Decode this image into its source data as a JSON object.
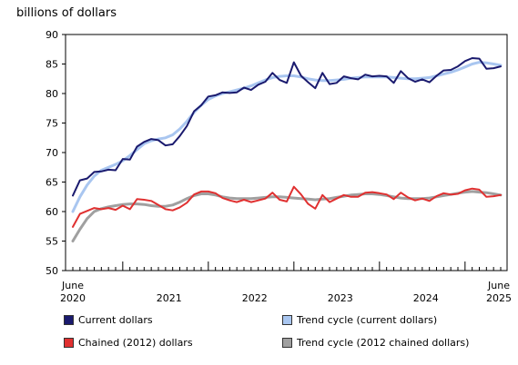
{
  "chart_data": {
    "type": "line",
    "ylabel": "billions of dollars",
    "ylim": [
      50,
      90
    ],
    "yticks": [
      50,
      55,
      60,
      65,
      70,
      75,
      80,
      85,
      90
    ],
    "x_start": "June 2020",
    "x_end": "June 2025",
    "xtick_labels": [
      {
        "label": "June",
        "sub": "2020"
      },
      {
        "label": "2021"
      },
      {
        "label": "2022"
      },
      {
        "label": "2023"
      },
      {
        "label": "2024"
      },
      {
        "label": "June",
        "sub": "2025"
      }
    ],
    "grid": false,
    "legend_position": "bottom",
    "series": [
      {
        "name": "Current dollars",
        "color": "#1a1a6e",
        "style": "solid",
        "values": [
          62.7,
          65.3,
          65.6,
          66.7,
          66.8,
          67.1,
          67.0,
          68.9,
          68.8,
          71.0,
          71.8,
          72.3,
          72.1,
          71.2,
          71.4,
          72.8,
          74.5,
          77.0,
          78.0,
          79.5,
          79.7,
          80.2,
          80.1,
          80.2,
          81.0,
          80.6,
          81.5,
          82.0,
          83.5,
          82.3,
          81.8,
          85.3,
          83.0,
          81.9,
          80.9,
          83.5,
          81.6,
          81.8,
          82.9,
          82.6,
          82.4,
          83.2,
          82.9,
          83.0,
          82.9,
          81.8,
          83.8,
          82.6,
          82.0,
          82.4,
          81.9,
          83.0,
          83.9,
          84.0,
          84.6,
          85.5,
          86.0,
          85.9,
          84.2,
          84.3,
          84.6
        ]
      },
      {
        "name": "Trend cycle (current dollars)",
        "color": "#a9c6f0",
        "style": "solid",
        "values": [
          60.0,
          62.5,
          64.5,
          66.0,
          67.0,
          67.5,
          68.0,
          68.6,
          69.5,
          70.5,
          71.5,
          72.0,
          72.3,
          72.5,
          73.0,
          74.0,
          75.3,
          76.8,
          78.0,
          79.0,
          79.6,
          80.0,
          80.3,
          80.6,
          80.9,
          81.3,
          81.8,
          82.3,
          82.7,
          82.9,
          83.0,
          83.0,
          82.8,
          82.5,
          82.3,
          82.2,
          82.2,
          82.3,
          82.4,
          82.6,
          82.7,
          82.8,
          82.8,
          82.8,
          82.8,
          82.7,
          82.6,
          82.5,
          82.5,
          82.6,
          82.7,
          83.0,
          83.3,
          83.6,
          84.0,
          84.5,
          85.0,
          85.3,
          85.2,
          85.0,
          84.8
        ]
      },
      {
        "name": "Chained (2012) dollars",
        "color": "#e03030",
        "style": "solid",
        "values": [
          57.4,
          59.6,
          60.1,
          60.6,
          60.4,
          60.6,
          60.3,
          61.0,
          60.4,
          62.1,
          62.0,
          61.8,
          61.1,
          60.4,
          60.2,
          60.7,
          61.5,
          62.9,
          63.4,
          63.4,
          63.1,
          62.3,
          61.9,
          61.6,
          62.0,
          61.6,
          61.9,
          62.2,
          63.2,
          62.0,
          61.7,
          64.2,
          62.9,
          61.3,
          60.5,
          62.8,
          61.6,
          62.2,
          62.8,
          62.5,
          62.5,
          63.2,
          63.3,
          63.1,
          62.9,
          62.1,
          63.2,
          62.4,
          61.9,
          62.2,
          61.8,
          62.6,
          63.1,
          62.9,
          63.0,
          63.6,
          63.9,
          63.7,
          62.5,
          62.6,
          62.8
        ]
      },
      {
        "name": "Trend cycle (2012 chained dollars)",
        "color": "#a0a0a0",
        "style": "solid",
        "values": [
          55.0,
          57.0,
          58.8,
          60.0,
          60.5,
          60.8,
          61.0,
          61.2,
          61.3,
          61.3,
          61.2,
          61.0,
          60.9,
          60.9,
          61.1,
          61.6,
          62.2,
          62.7,
          63.0,
          63.0,
          62.8,
          62.5,
          62.3,
          62.2,
          62.2,
          62.2,
          62.3,
          62.4,
          62.5,
          62.5,
          62.4,
          62.3,
          62.2,
          62.1,
          62.0,
          62.1,
          62.2,
          62.4,
          62.6,
          62.8,
          62.9,
          63.0,
          63.0,
          62.9,
          62.7,
          62.5,
          62.3,
          62.2,
          62.2,
          62.2,
          62.3,
          62.5,
          62.7,
          62.9,
          63.1,
          63.3,
          63.4,
          63.3,
          63.2,
          63.0,
          62.8
        ]
      }
    ]
  }
}
